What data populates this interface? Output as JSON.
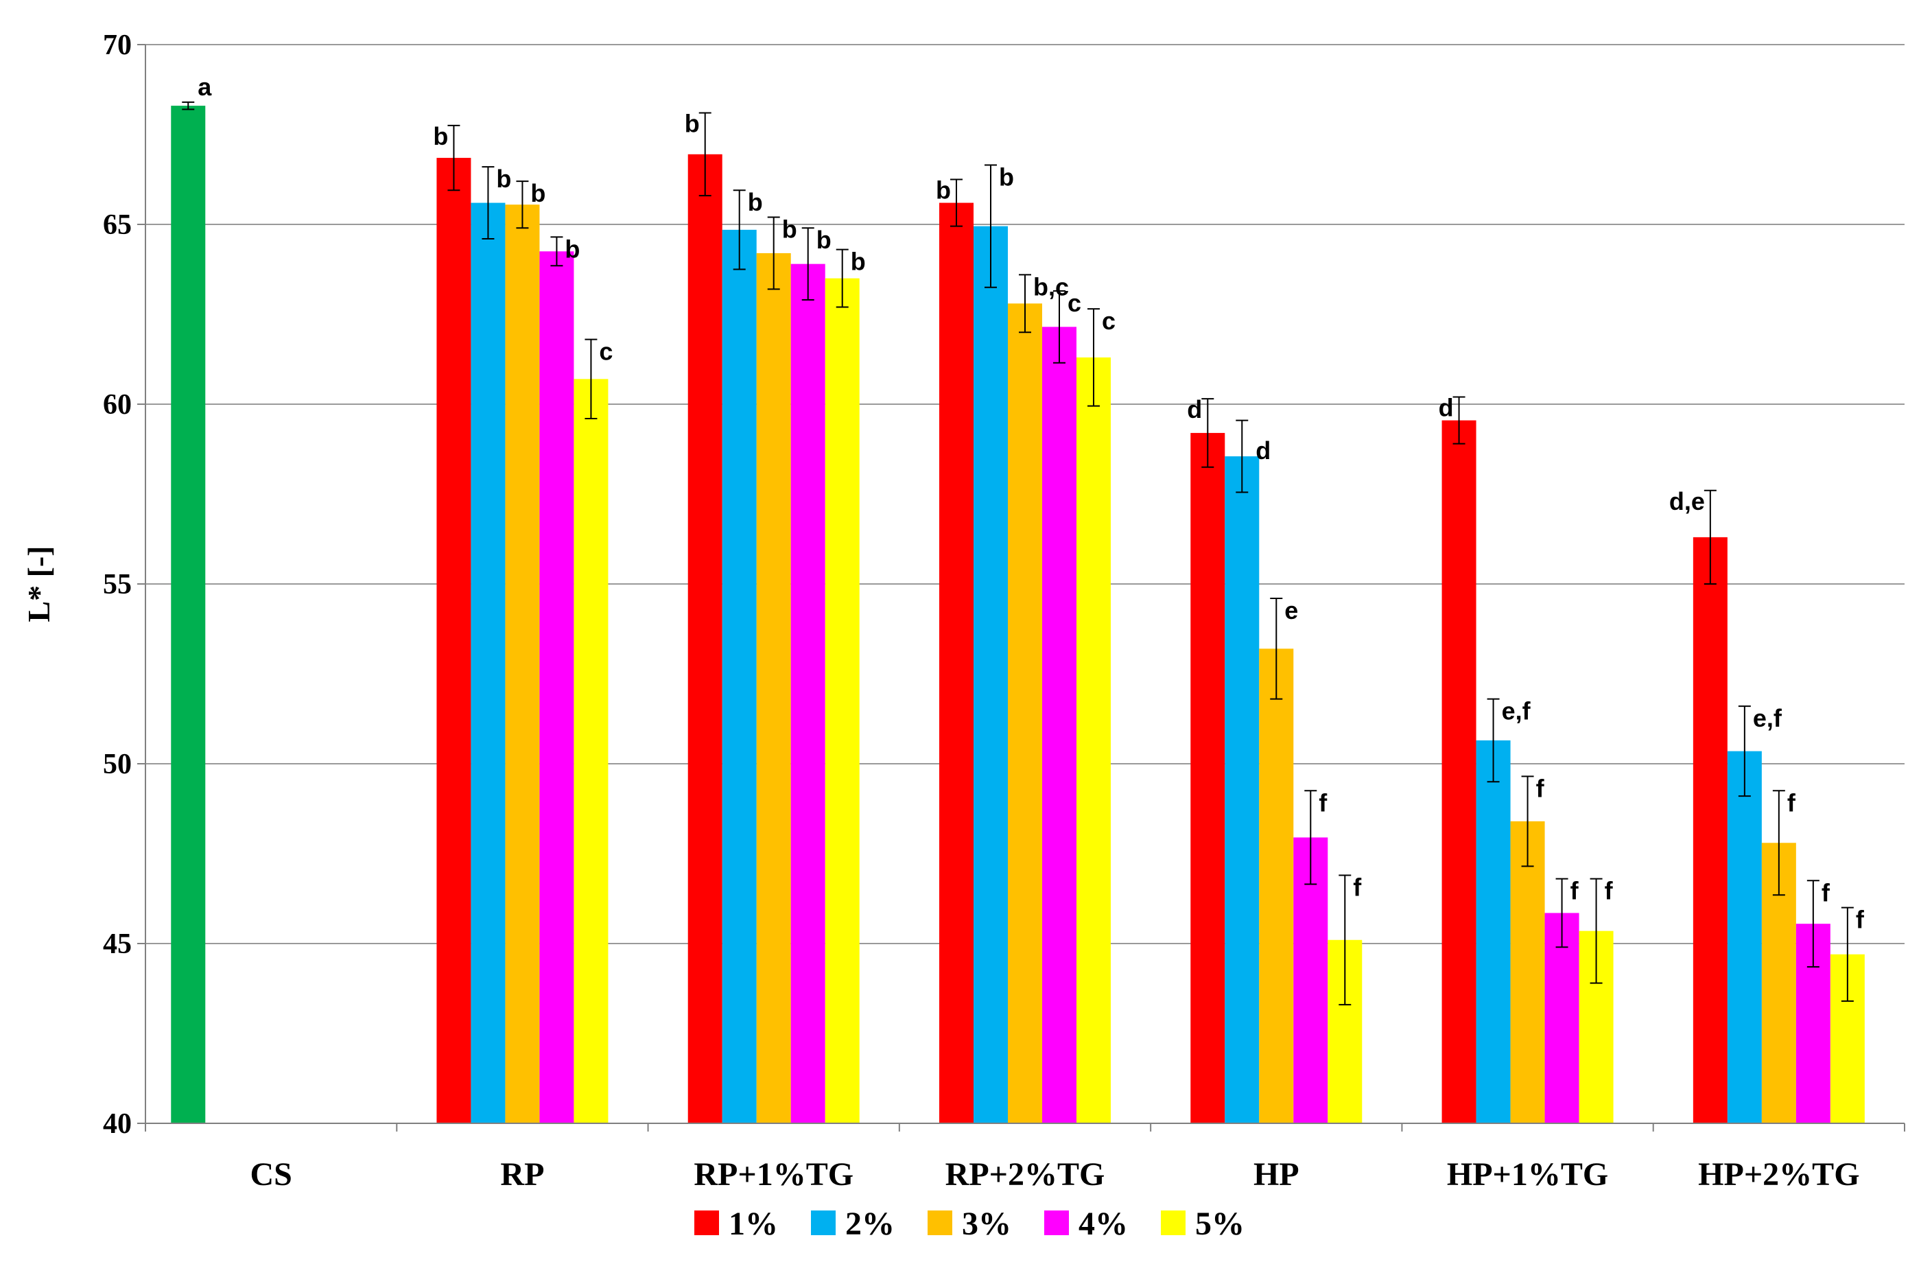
{
  "chart_data": {
    "type": "bar",
    "title": "",
    "xlabel": "",
    "ylabel": "L* [-]",
    "ylim": [
      40,
      70
    ],
    "yticks": [
      40,
      45,
      50,
      55,
      60,
      65,
      70
    ],
    "grid": true,
    "legend_position": "bottom",
    "categories": [
      "CS",
      "RP",
      "RP+1%TG",
      "RP+2%TG",
      "HP",
      "HP+1%TG",
      "HP+2%TG"
    ],
    "control": {
      "category": "CS",
      "value": 68.3,
      "error": 0.1,
      "label": "a",
      "color": "#00B050"
    },
    "series": [
      {
        "name": "1%",
        "color": "#FF0000",
        "values": [
          null,
          66.85,
          66.95,
          65.6,
          59.2,
          59.55,
          56.3
        ],
        "errors": [
          null,
          0.9,
          1.15,
          0.65,
          0.95,
          0.65,
          1.3
        ],
        "labels": [
          null,
          "b",
          "b",
          "b",
          "d",
          "d",
          "d,e"
        ]
      },
      {
        "name": "2%",
        "color": "#00B0F0",
        "values": [
          null,
          65.6,
          64.85,
          64.95,
          58.55,
          50.65,
          50.35
        ],
        "errors": [
          null,
          1.0,
          1.1,
          1.7,
          1.0,
          1.15,
          1.25
        ],
        "labels": [
          null,
          "b",
          "b",
          "b",
          null,
          "e,f",
          "e,f"
        ]
      },
      {
        "name": "3%",
        "color": "#FFC000",
        "values": [
          null,
          65.55,
          64.2,
          62.8,
          53.2,
          48.4,
          47.8
        ],
        "errors": [
          null,
          0.65,
          1.0,
          0.8,
          1.4,
          1.25,
          1.45
        ],
        "labels": [
          null,
          "b",
          "b",
          "b,c",
          "e",
          "f",
          "f"
        ]
      },
      {
        "name": "4%",
        "color": "#FF00FF",
        "values": [
          null,
          64.25,
          63.9,
          62.15,
          47.95,
          45.85,
          45.55
        ],
        "errors": [
          null,
          0.4,
          1.0,
          1.0,
          1.3,
          0.95,
          1.2
        ],
        "labels": [
          null,
          "b",
          "b",
          "c",
          "f",
          "f",
          "f"
        ]
      },
      {
        "name": "5%",
        "color": "#FFFF00",
        "values": [
          null,
          60.7,
          63.5,
          61.3,
          45.1,
          45.35,
          44.7
        ],
        "errors": [
          null,
          1.1,
          0.8,
          1.35,
          1.8,
          1.45,
          1.3
        ],
        "labels": [
          null,
          "c",
          "b",
          "c",
          "f",
          "f",
          "f"
        ]
      }
    ],
    "extra_labels": [
      {
        "category": "HP",
        "series": "2%",
        "text": "d"
      }
    ]
  }
}
